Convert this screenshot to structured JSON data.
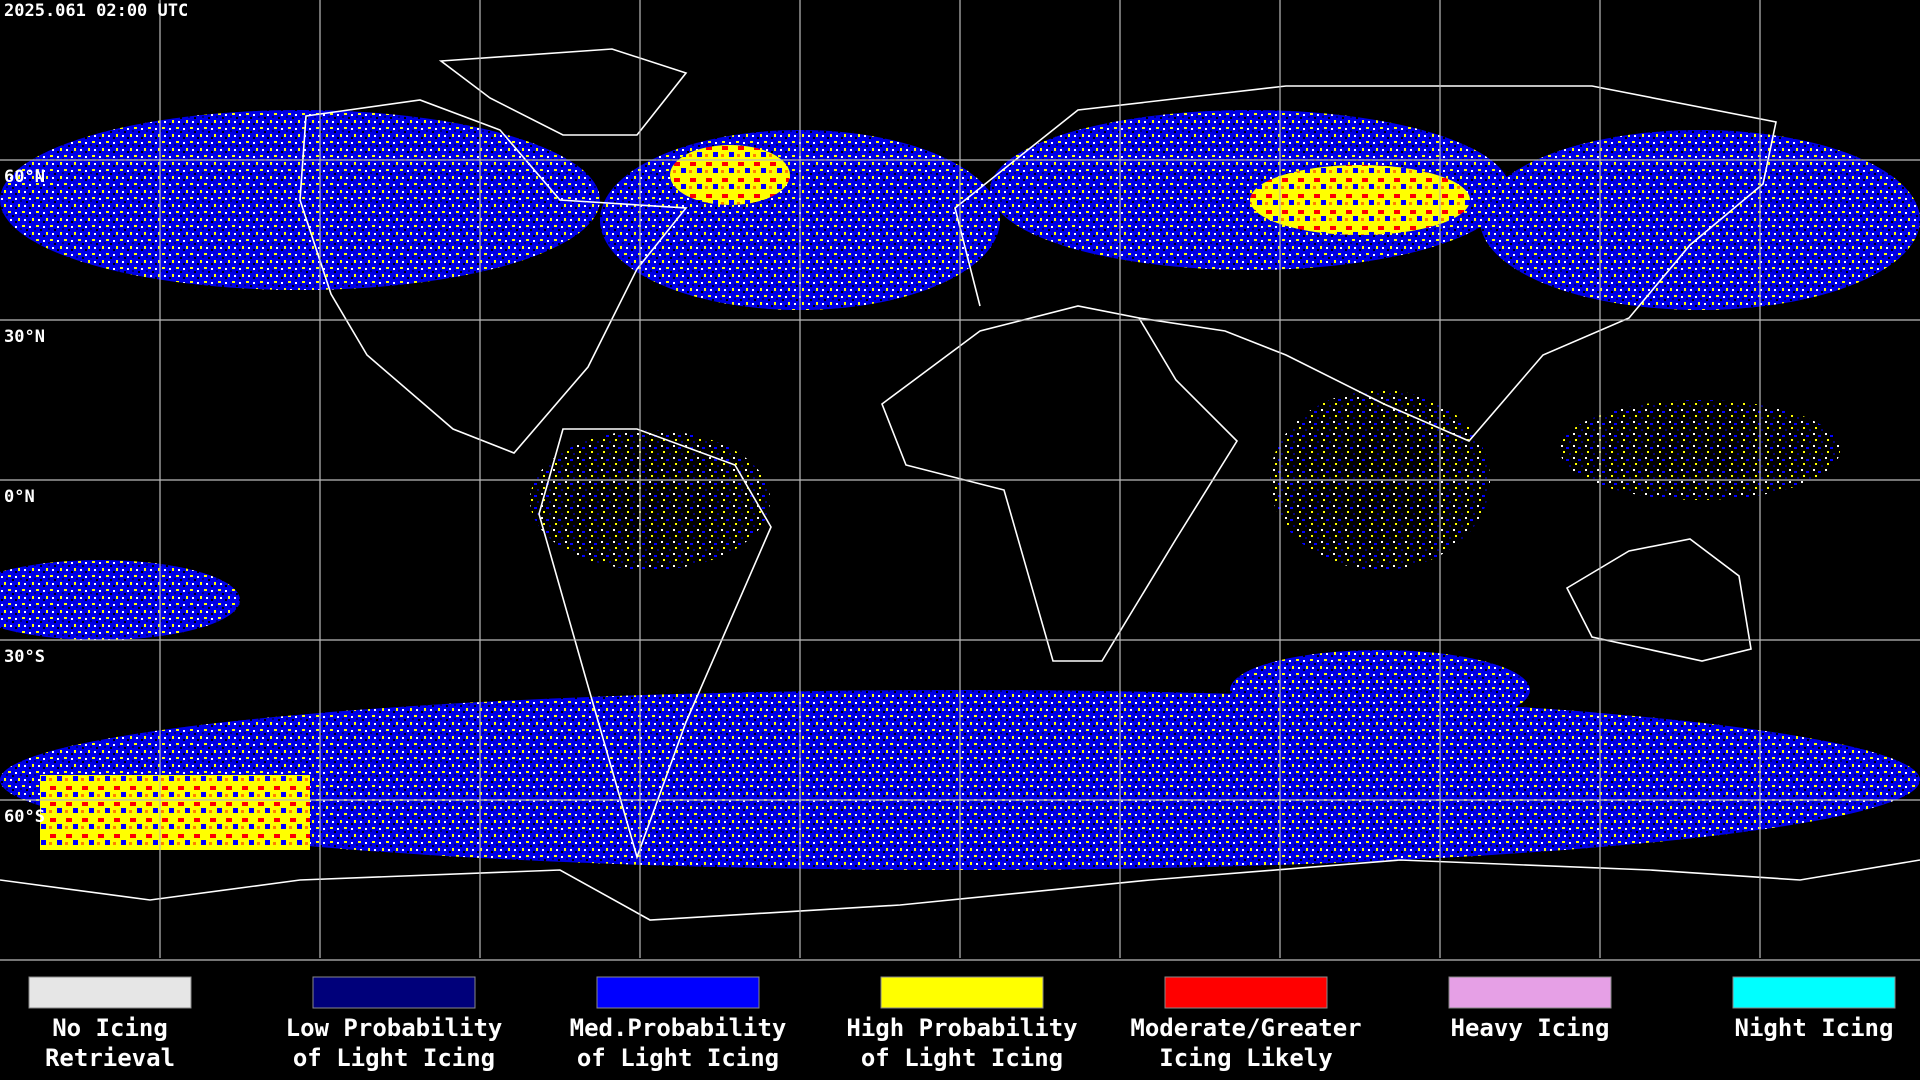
{
  "timestamp": "2025.061 02:00 UTC",
  "lat_labels": [
    "60°N",
    "30°N",
    "0°N",
    "30°S",
    "60°S"
  ],
  "legend": [
    {
      "label": [
        "No Icing",
        "Retrieval"
      ],
      "color": "#e6e6e6"
    },
    {
      "label": [
        "Low Probability",
        "of Light Icing"
      ],
      "color": "#00007a"
    },
    {
      "label": [
        "Med.Probability",
        "of Light Icing"
      ],
      "color": "#0000ff"
    },
    {
      "label": [
        "High Probability",
        "of Light Icing"
      ],
      "color": "#ffff00"
    },
    {
      "label": [
        "Moderate/Greater",
        "Icing Likely"
      ],
      "color": "#ff0000"
    },
    {
      "label": [
        "Heavy Icing"
      ],
      "color": "#e6a0e6"
    },
    {
      "label": [
        "Night Icing"
      ],
      "color": "#00ffff"
    }
  ]
}
